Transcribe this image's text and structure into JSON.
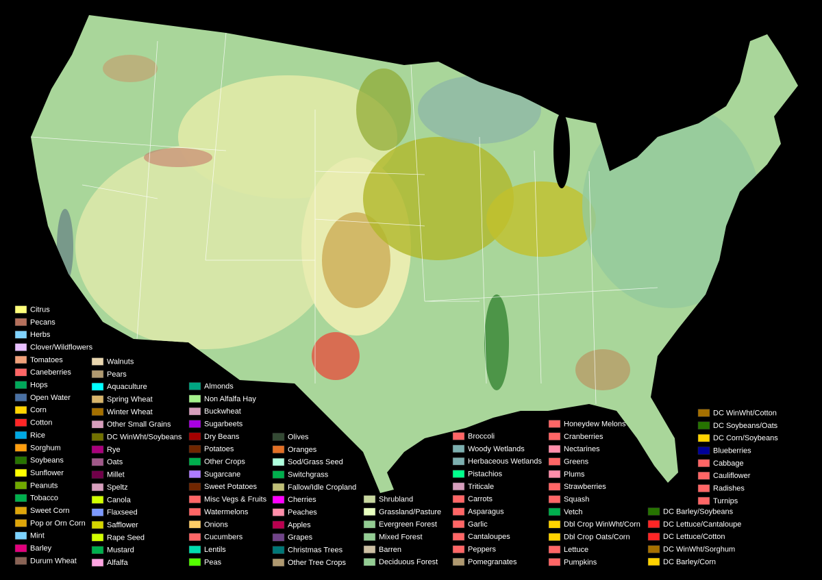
{
  "legend": {
    "columns": [
      {
        "entries": [
          {
            "label": "Citrus",
            "color": "#ffff7a"
          },
          {
            "label": "Pecans",
            "color": "#b5705c"
          },
          {
            "label": "Herbs",
            "color": "#7fd3ff"
          },
          {
            "label": "Clover/Wildflowers",
            "color": "#e8bfff"
          },
          {
            "label": "Tomatoes",
            "color": "#f0a07a"
          },
          {
            "label": "Caneberries",
            "color": "#ff6666"
          },
          {
            "label": "Hops",
            "color": "#00a85a"
          },
          {
            "label": "Open Water",
            "color": "#4970a3"
          },
          {
            "label": "Corn",
            "color": "#ffd300"
          },
          {
            "label": "Cotton",
            "color": "#ff2626"
          },
          {
            "label": "Rice",
            "color": "#00a8e3"
          },
          {
            "label": "Sorghum",
            "color": "#ff9e0f"
          },
          {
            "label": "Soybeans",
            "color": "#267300"
          },
          {
            "label": "Sunflower",
            "color": "#ffff00"
          },
          {
            "label": "Peanuts",
            "color": "#70a800"
          },
          {
            "label": "Tobacco",
            "color": "#00af4d"
          },
          {
            "label": "Sweet Corn",
            "color": "#dda50a"
          },
          {
            "label": "Pop or Orn Corn",
            "color": "#dda50a"
          },
          {
            "label": "Mint",
            "color": "#7cd3ff"
          },
          {
            "label": "Barley",
            "color": "#e2007d"
          },
          {
            "label": "Durum Wheat",
            "color": "#896355"
          }
        ]
      },
      {
        "entries": [
          {
            "label": "Walnuts",
            "color": "#e9d6af"
          },
          {
            "label": "Pears",
            "color": "#af9970"
          },
          {
            "label": "Aquaculture",
            "color": "#00ffff"
          },
          {
            "label": "Spring Wheat",
            "color": "#d8b56b"
          },
          {
            "label": "Winter Wheat",
            "color": "#a57000"
          },
          {
            "label": "Other Small Grains",
            "color": "#d69ebc"
          },
          {
            "label": "DC WinWht/Soybeans",
            "color": "#707000"
          },
          {
            "label": "Rye",
            "color": "#aa007c"
          },
          {
            "label": "Oats",
            "color": "#a05989"
          },
          {
            "label": "Millet",
            "color": "#700049"
          },
          {
            "label": "Speltz",
            "color": "#d69ebc"
          },
          {
            "label": "Canola",
            "color": "#d1ff00"
          },
          {
            "label": "Flaxseed",
            "color": "#7c99ff"
          },
          {
            "label": "Safflower",
            "color": "#d6d600"
          },
          {
            "label": "Rape Seed",
            "color": "#d1ff00"
          },
          {
            "label": "Mustard",
            "color": "#00af4d"
          },
          {
            "label": "Alfalfa",
            "color": "#ffa5e2"
          }
        ]
      },
      {
        "entries": [
          {
            "label": "Almonds",
            "color": "#00a582"
          },
          {
            "label": "Non Alfalfa Hay",
            "color": "#a5f28c"
          },
          {
            "label": "Buckwheat",
            "color": "#d69ebc"
          },
          {
            "label": "Sugarbeets",
            "color": "#a800e2"
          },
          {
            "label": "Dry Beans",
            "color": "#a50000"
          },
          {
            "label": "Potatoes",
            "color": "#702600"
          },
          {
            "label": "Other Crops",
            "color": "#00af4d"
          },
          {
            "label": "Sugarcane",
            "color": "#af7cff"
          },
          {
            "label": "Sweet Potatoes",
            "color": "#702600"
          },
          {
            "label": "Misc Vegs & Fruits",
            "color": "#ff6666"
          },
          {
            "label": "Watermelons",
            "color": "#ff6666"
          },
          {
            "label": "Onions",
            "color": "#ffcc66"
          },
          {
            "label": "Cucumbers",
            "color": "#ff6666"
          },
          {
            "label": "Lentils",
            "color": "#00ddaf"
          },
          {
            "label": "Peas",
            "color": "#54ff00"
          }
        ]
      },
      {
        "entries": [
          {
            "label": "Olives",
            "color": "#334933"
          },
          {
            "label": "Oranges",
            "color": "#e27026"
          },
          {
            "label": "Sod/Grass Seed",
            "color": "#afffdd"
          },
          {
            "label": "Switchgrass",
            "color": "#00af4d"
          },
          {
            "label": "Fallow/Idle Cropland",
            "color": "#bfbf77"
          },
          {
            "label": "Cherries",
            "color": "#ff00ff"
          },
          {
            "label": "Peaches",
            "color": "#ff8eaa"
          },
          {
            "label": "Apples",
            "color": "#ba004f"
          },
          {
            "label": "Grapes",
            "color": "#704489"
          },
          {
            "label": "Christmas Trees",
            "color": "#007777"
          },
          {
            "label": "Other Tree Crops",
            "color": "#af9970"
          }
        ]
      },
      {
        "entries": [
          {
            "label": "Shrubland",
            "color": "#c6d69e"
          },
          {
            "label": "Grassland/Pasture",
            "color": "#e8ffbf"
          },
          {
            "label": "Evergreen Forest",
            "color": "#93cc93"
          },
          {
            "label": "Mixed Forest",
            "color": "#93cc93"
          },
          {
            "label": "Barren",
            "color": "#ccbfa3"
          },
          {
            "label": "Deciduous Forest",
            "color": "#93cc93"
          }
        ]
      },
      {
        "entries": [
          {
            "label": "Broccoli",
            "color": "#ff6666"
          },
          {
            "label": "Woody Wetlands",
            "color": "#7cafaf"
          },
          {
            "label": "Herbaceous Wetlands",
            "color": "#7cafaf"
          },
          {
            "label": "Pistachios",
            "color": "#00ff8c"
          },
          {
            "label": "Triticale",
            "color": "#d69ebc"
          },
          {
            "label": "Carrots",
            "color": "#ff6666"
          },
          {
            "label": "Asparagus",
            "color": "#ff6666"
          },
          {
            "label": "Garlic",
            "color": "#ff6666"
          },
          {
            "label": "Cantaloupes",
            "color": "#ff6666"
          },
          {
            "label": "Peppers",
            "color": "#ff6666"
          },
          {
            "label": "Pomegranates",
            "color": "#af9970"
          }
        ]
      },
      {
        "entries": [
          {
            "label": "Honeydew Melons",
            "color": "#ff6666"
          },
          {
            "label": "Cranberries",
            "color": "#ff6666"
          },
          {
            "label": "Nectarines",
            "color": "#ff8eaa"
          },
          {
            "label": "Greens",
            "color": "#ff6666"
          },
          {
            "label": "Plums",
            "color": "#ff8eaa"
          },
          {
            "label": "Strawberries",
            "color": "#ff6666"
          },
          {
            "label": "Squash",
            "color": "#ff6666"
          },
          {
            "label": "Vetch",
            "color": "#00af4d"
          },
          {
            "label": "Dbl Crop WinWht/Corn",
            "color": "#ffd300"
          },
          {
            "label": "Dbl Crop Oats/Corn",
            "color": "#ffd300"
          },
          {
            "label": "Lettuce",
            "color": "#ff6666"
          },
          {
            "label": "Pumpkins",
            "color": "#ff6666"
          }
        ]
      },
      {
        "entries": [
          {
            "label": "DC WinWht/Cotton",
            "color": "#a57000"
          },
          {
            "label": "DC Soybeans/Oats",
            "color": "#267300"
          },
          {
            "label": "DC Corn/Soybeans",
            "color": "#ffd300"
          },
          {
            "label": "Blueberries",
            "color": "#000099"
          },
          {
            "label": "Cabbage",
            "color": "#ff6666"
          },
          {
            "label": "Cauliflower",
            "color": "#ff6666"
          },
          {
            "label": "Radishes",
            "color": "#ff6666"
          },
          {
            "label": "Turnips",
            "color": "#ff6666"
          }
        ]
      },
      {
        "entries": [
          {
            "label": "DC Barley/Soybeans",
            "color": "#267300"
          },
          {
            "label": "DC Lettuce/Cantaloupe",
            "color": "#ff2626"
          },
          {
            "label": "DC Lettuce/Cotton",
            "color": "#ff2626"
          },
          {
            "label": "DC WinWht/Sorghum",
            "color": "#a57000"
          },
          {
            "label": "DC Barley/Corn",
            "color": "#ffd300"
          }
        ]
      }
    ]
  }
}
